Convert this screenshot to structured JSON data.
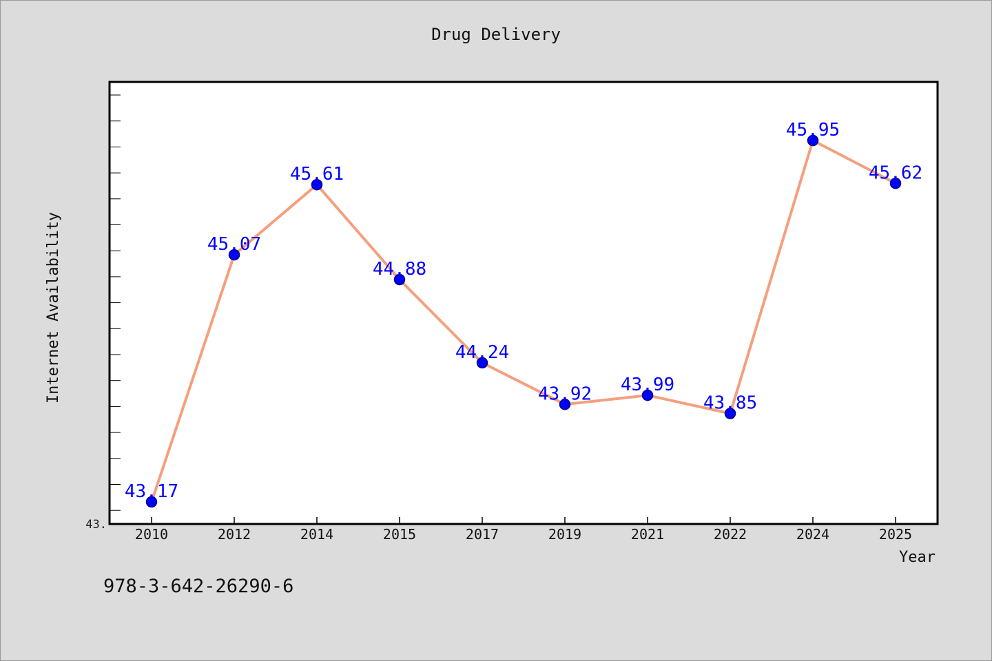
{
  "chart_data": {
    "type": "line",
    "title": "Drug Delivery",
    "xlabel": "Year",
    "ylabel": "Internet Availability",
    "y_axis_visible_tick_label": "43.",
    "categories": [
      "2010",
      "2012",
      "2014",
      "2015",
      "2017",
      "2019",
      "2021",
      "2022",
      "2024",
      "2025"
    ],
    "values": [
      43.17,
      45.07,
      45.61,
      44.88,
      44.24,
      43.92,
      43.99,
      43.85,
      45.95,
      45.62
    ],
    "data_labels": [
      "43.17",
      "45.07",
      "45.61",
      "44.88",
      "44.24",
      "43.92",
      "43.99",
      "43.85",
      "45.95",
      "45.62"
    ],
    "ylim": [
      43.0,
      46.4
    ],
    "grid": false,
    "legend": "none",
    "colors": {
      "line": "#f4a07e",
      "marker": "#0000ff",
      "marker_edge": "#000080",
      "data_label": "#0000ff",
      "plot_background": "#ffffff",
      "figure_background": "#dcdcdc"
    }
  },
  "footer": {
    "code": "978-3-642-26290-6"
  }
}
